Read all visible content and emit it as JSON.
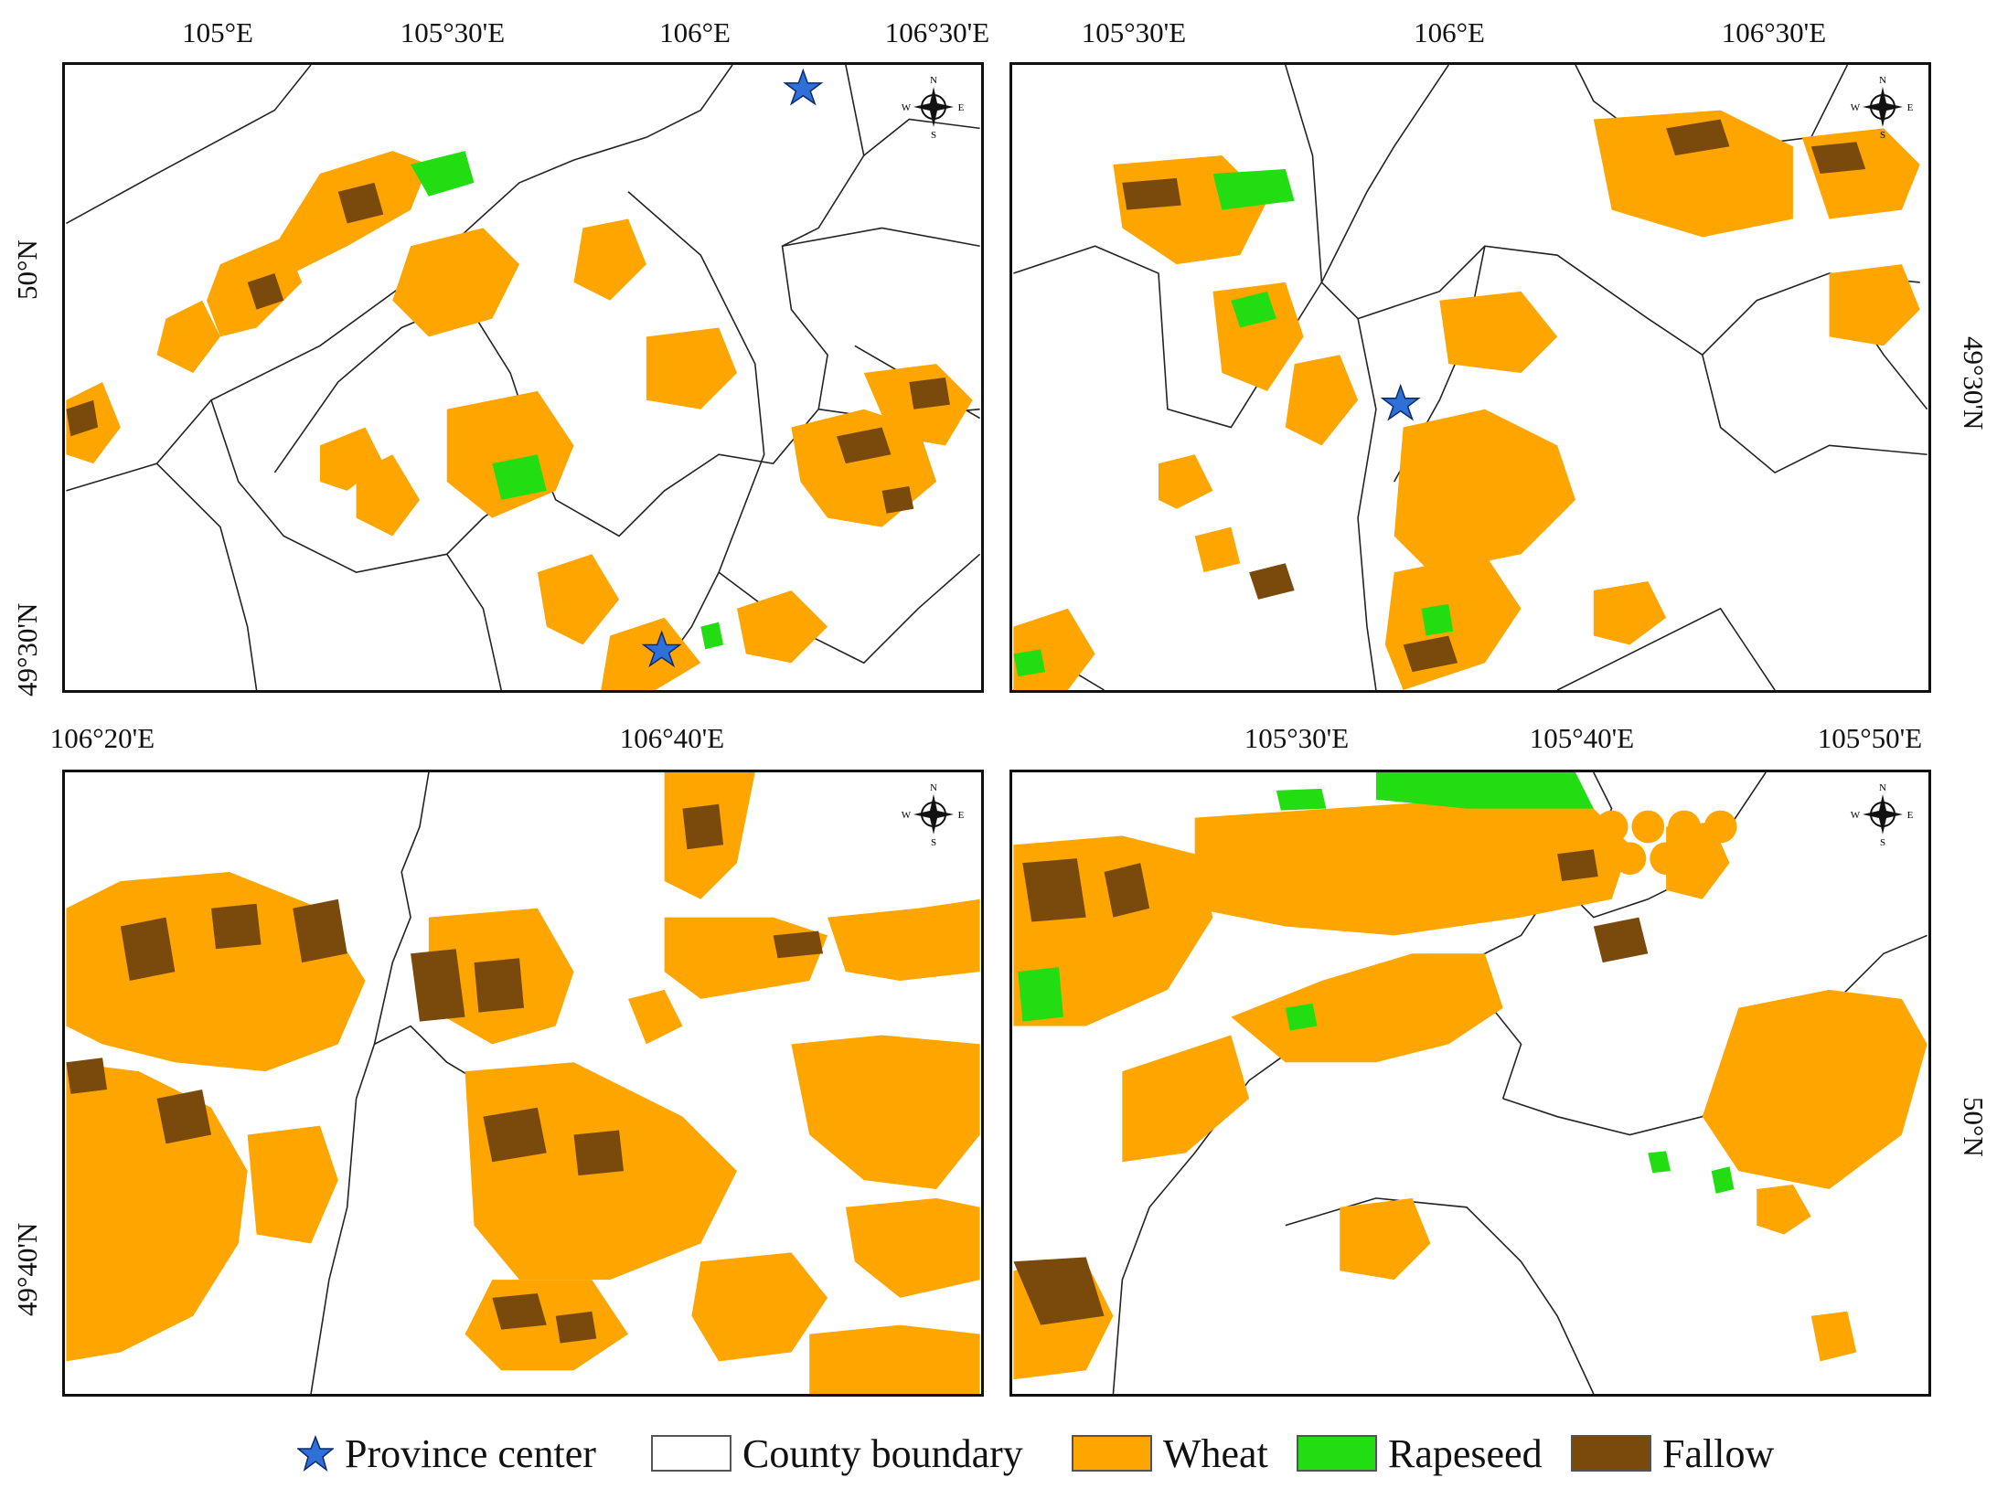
{
  "colors": {
    "wheat": "#FFA500",
    "rapeseed": "#22DD11",
    "fallow": "#7A4A0C",
    "boundary": "#222222",
    "province_star": "#2E6FD8"
  },
  "compass": {
    "n": "N",
    "s": "S",
    "e": "E",
    "w": "W"
  },
  "panels": [
    {
      "id": "top-left",
      "top_ticks": [
        "105°E",
        "105°30'E",
        "106°E",
        "106°30'E"
      ],
      "left_ticks": [
        "50°N",
        "49°30'N"
      ],
      "right_ticks": []
    },
    {
      "id": "top-right",
      "top_ticks": [
        "105°30'E",
        "106°E",
        "106°30'E"
      ],
      "left_ticks": [],
      "right_ticks": [
        "49°30'N"
      ]
    },
    {
      "id": "bottom-left",
      "top_ticks": [
        "106°20'E",
        "106°40'E"
      ],
      "left_ticks": [
        "49°40'N"
      ],
      "right_ticks": []
    },
    {
      "id": "bottom-right",
      "top_ticks": [
        "105°30'E",
        "105°40'E",
        "105°50'E"
      ],
      "left_ticks": [],
      "right_ticks": [
        "50°N"
      ]
    }
  ],
  "legend": {
    "province_center": "Province center",
    "county_boundary": "County boundary",
    "wheat": "Wheat",
    "rapeseed": "Rapeseed",
    "fallow": "Fallow"
  }
}
